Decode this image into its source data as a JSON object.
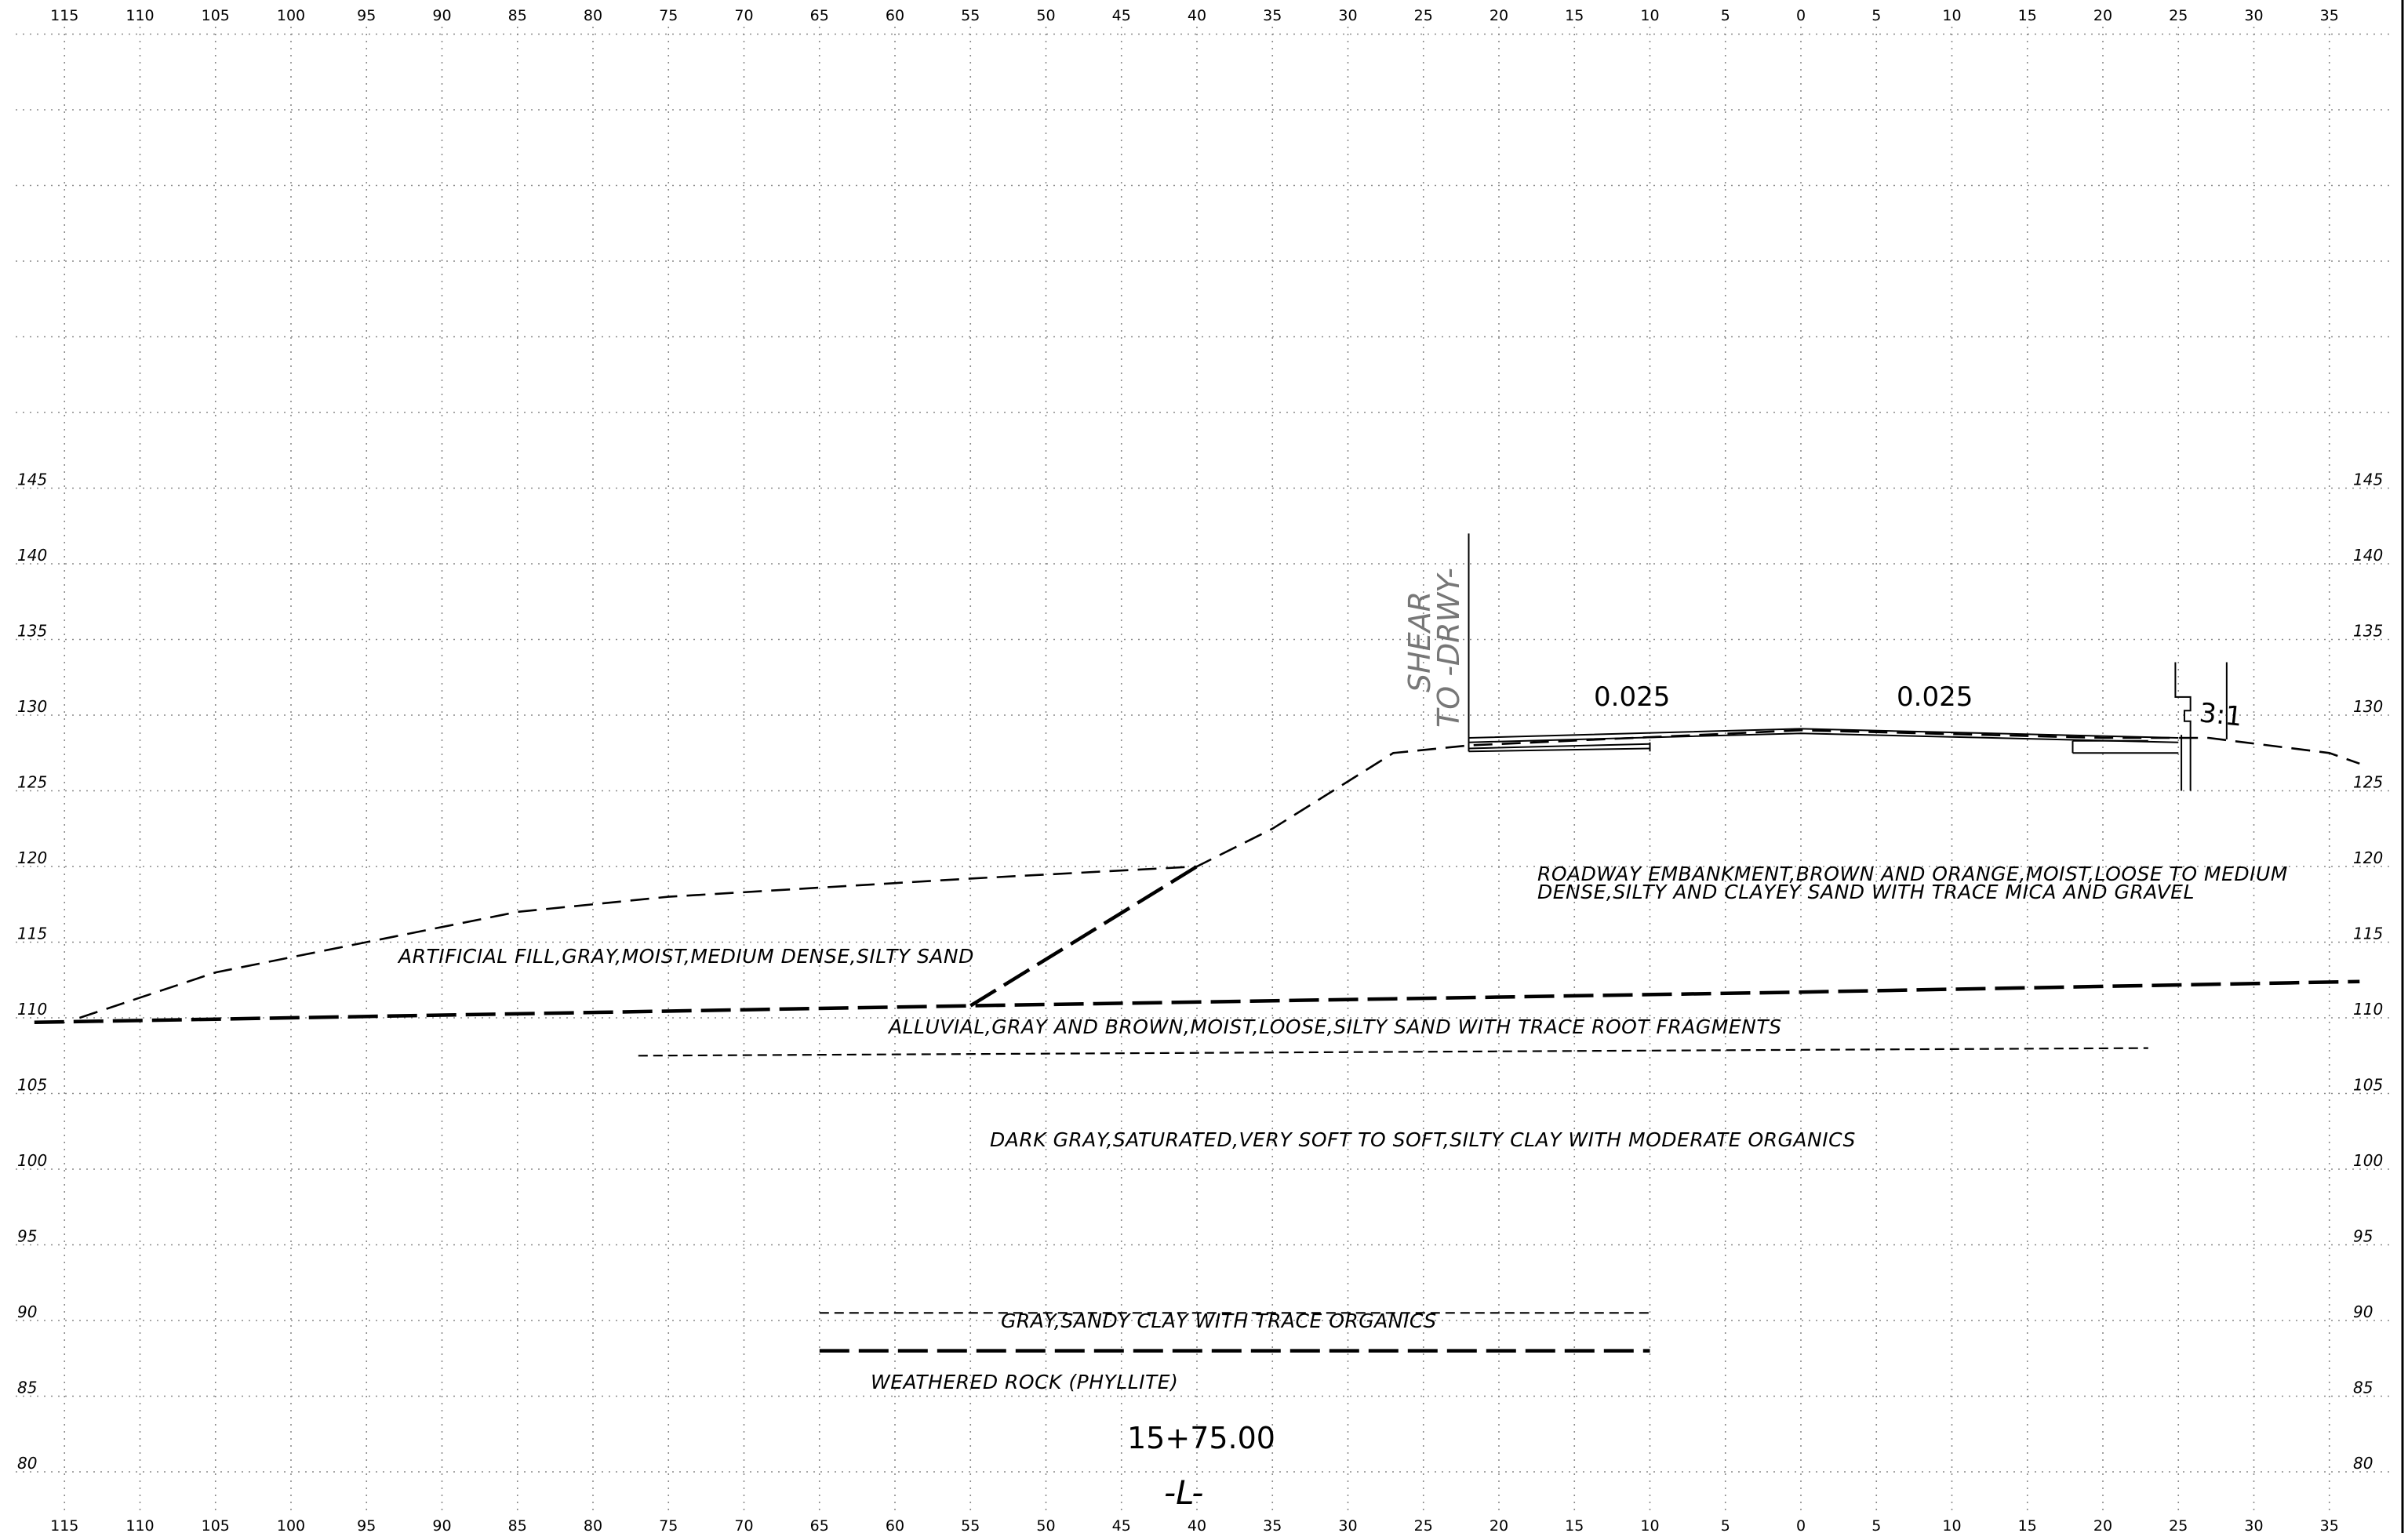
{
  "chart_data": {
    "type": "cross-section",
    "station_label": "15+75.00",
    "alignment_label": "-L-",
    "x_tick_labels": [
      "115",
      "110",
      "105",
      "100",
      "95",
      "90",
      "85",
      "80",
      "75",
      "70",
      "65",
      "60",
      "55",
      "50",
      "45",
      "40",
      "35",
      "30",
      "25",
      "20",
      "15",
      "10",
      "5",
      "0",
      "5",
      "10",
      "15",
      "20",
      "25",
      "30",
      "35"
    ],
    "elevation_tick_labels": [
      "145",
      "140",
      "135",
      "130",
      "125",
      "120",
      "115",
      "110",
      "105",
      "100",
      "95",
      "90",
      "85",
      "80"
    ],
    "x_range_offsets": [
      -115,
      35
    ],
    "elevation_range": [
      80,
      145
    ],
    "slope_labels": [
      "0.025",
      "0.025",
      "3:1"
    ],
    "note": [
      "SHEAR",
      "TO -DRWY-"
    ],
    "soil_labels": [
      "ARTIFICIAL FILL,GRAY,MOIST,MEDIUM DENSE,SILTY SAND",
      "ROADWAY EMBANKMENT,BROWN AND ORANGE,MOIST,LOOSE TO MEDIUM",
      "DENSE,SILTY AND CLAYEY SAND WITH TRACE MICA AND GRAVEL",
      "ALLUVIAL,GRAY AND BROWN,MOIST,LOOSE,SILTY SAND WITH TRACE ROOT FRAGMENTS",
      "DARK GRAY,SATURATED,VERY SOFT TO SOFT,SILTY CLAY WITH MODERATE ORGANICS",
      "GRAY,SANDY CLAY WITH TRACE ORGANICS",
      "WEATHERED ROCK (PHYLLITE)"
    ],
    "existing_ground": [
      [
        -114,
        110
      ],
      [
        -105,
        113
      ],
      [
        -95,
        115
      ],
      [
        -85,
        117
      ],
      [
        -75,
        118
      ],
      [
        -65,
        118.6
      ],
      [
        -55,
        119.2
      ],
      [
        -40,
        120
      ],
      [
        -35,
        122.5
      ],
      [
        -27,
        127.5
      ],
      [
        -22,
        128
      ],
      [
        0,
        129
      ],
      [
        20,
        128.5
      ],
      [
        27,
        128.5
      ],
      [
        35,
        127.5
      ],
      [
        37,
        126.8
      ]
    ],
    "fill_bottom_boundary": [
      [
        -117,
        109.7
      ],
      [
        -55,
        110.8
      ],
      [
        0,
        111.7
      ],
      [
        37,
        112.4
      ]
    ],
    "fill_embankment_contact": [
      [
        -55,
        110.8
      ],
      [
        -40,
        120
      ]
    ],
    "alluvial_bottom": [
      [
        -77,
        107.5
      ],
      [
        23,
        108
      ]
    ],
    "gray_clay_top": [
      [
        -65,
        90.5
      ],
      [
        -10,
        90.5
      ]
    ],
    "weathered_rock_top": [
      [
        -65,
        88
      ],
      [
        -10,
        88
      ]
    ],
    "road_surface": [
      [
        -22,
        128.5
      ],
      [
        0,
        129.1
      ],
      [
        25,
        128.5
      ]
    ]
  }
}
